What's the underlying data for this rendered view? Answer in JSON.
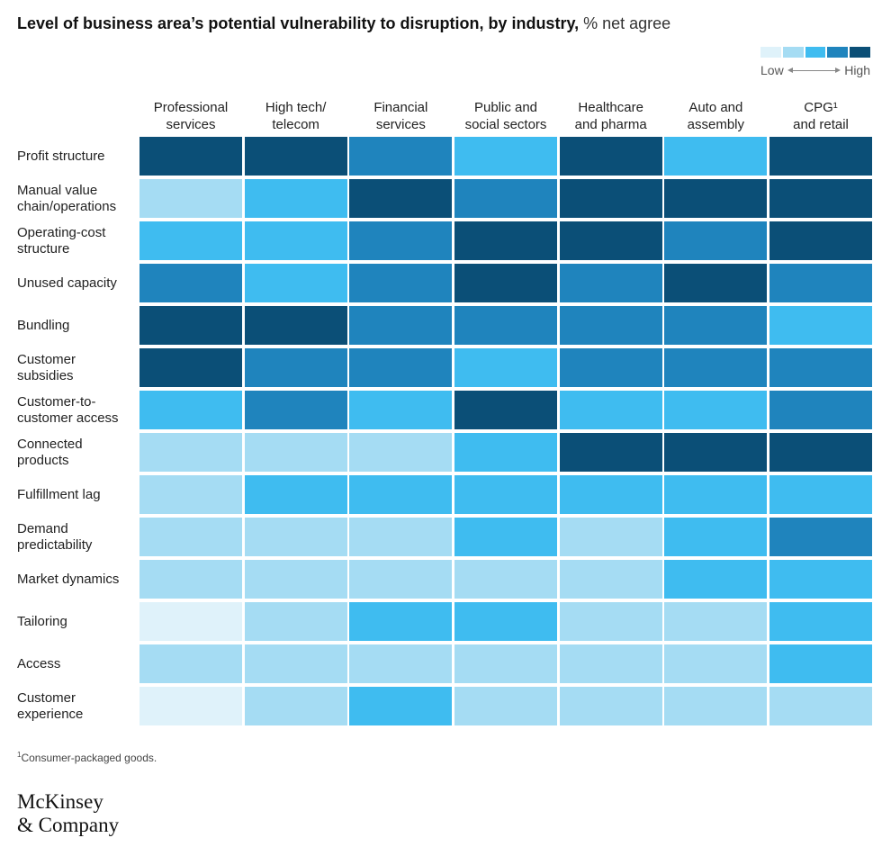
{
  "title": "Level of business area’s potential vulnerability to disruption, by industry,",
  "title_unit": " % net agree",
  "legend": {
    "low_label": "Low",
    "high_label": "High",
    "colors": [
      "#dff2fa",
      "#a5dcf3",
      "#3fbcf0",
      "#1f84bd",
      "#0b4f77"
    ]
  },
  "chart_data": {
    "type": "heatmap",
    "title": "Level of business area’s potential vulnerability to disruption, by industry, % net agree",
    "columns": [
      "Professional\nservices",
      "High tech/\ntelecom",
      "Financial\nservices",
      "Public and\nsocial sectors",
      "Healthcare\nand pharma",
      "Auto and\nassembly",
      "CPG¹\nand retail"
    ],
    "rows": [
      "Profit structure",
      "Manual value\nchain/operations",
      "Operating-cost\nstructure",
      "Unused capacity",
      "Bundling",
      "Customer\nsubsidies",
      "Customer-to-\ncustomer access",
      "Connected\nproducts",
      "Fulfillment lag",
      "Demand\npredictability",
      "Market dynamics",
      "Tailoring",
      "Access",
      "Customer\nexperience"
    ],
    "levels": [
      [
        5,
        5,
        4,
        3,
        5,
        3,
        5
      ],
      [
        2,
        3,
        5,
        4,
        5,
        5,
        5
      ],
      [
        3,
        3,
        4,
        5,
        5,
        4,
        5
      ],
      [
        4,
        3,
        4,
        5,
        4,
        5,
        4
      ],
      [
        5,
        5,
        4,
        4,
        4,
        4,
        3
      ],
      [
        5,
        4,
        4,
        3,
        4,
        4,
        4
      ],
      [
        3,
        4,
        3,
        5,
        3,
        3,
        4
      ],
      [
        2,
        2,
        2,
        3,
        5,
        5,
        5
      ],
      [
        2,
        3,
        3,
        3,
        3,
        3,
        3
      ],
      [
        2,
        2,
        2,
        3,
        2,
        3,
        4
      ],
      [
        2,
        2,
        2,
        2,
        2,
        3,
        3
      ],
      [
        1,
        2,
        3,
        3,
        2,
        2,
        3
      ],
      [
        2,
        2,
        2,
        2,
        2,
        2,
        3
      ],
      [
        1,
        2,
        3,
        2,
        2,
        2,
        2
      ]
    ]
  },
  "footnote_marker": "1",
  "footnote": "Consumer-packaged goods.",
  "logo_text": "McKinsey\n& Company"
}
